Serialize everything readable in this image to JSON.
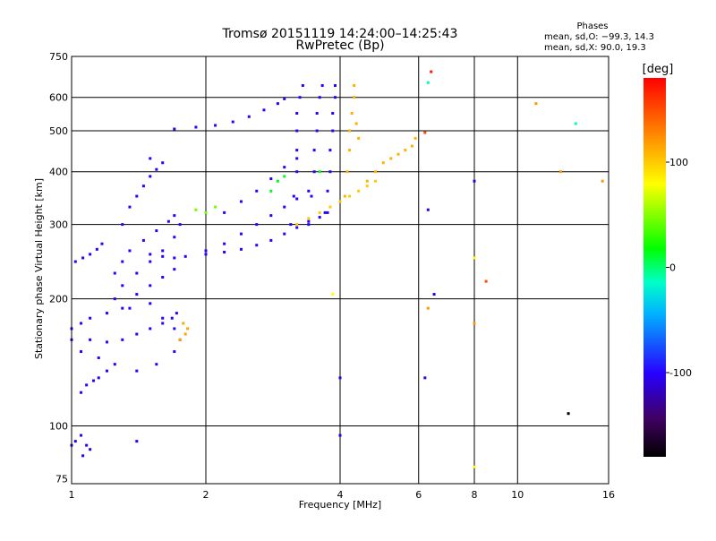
{
  "chart_data": {
    "type": "scatter",
    "title": "Tromsø 20151119 14:24:00–14:25:43",
    "subtitle": "RwPretec (Bp)",
    "stats": {
      "heading": "Phases",
      "line1": "mean, sd,O: −99.3, 14.3",
      "line2": "mean, sd,X:  90.0, 19.3"
    },
    "xlabel": "Frequency [MHz]",
    "ylabel": "Stationary phase Virtual Height [km]",
    "xscale": "log",
    "yscale": "log",
    "xlim": [
      1,
      16
    ],
    "ylim": [
      73,
      750
    ],
    "xticks": [
      1,
      2,
      4,
      6,
      8,
      10,
      16
    ],
    "yticks": [
      75,
      100,
      200,
      300,
      400,
      500,
      600,
      750
    ],
    "grid": true,
    "colorbar": {
      "label": "[deg]",
      "range": [
        -180,
        180
      ],
      "ticks": [
        100,
        0,
        -100
      ]
    },
    "series": [
      {
        "phase": -105,
        "points": [
          [
            1.0,
            90
          ],
          [
            1.02,
            92
          ],
          [
            1.05,
            95
          ],
          [
            1.06,
            85
          ],
          [
            1.08,
            90
          ],
          [
            1.4,
            92
          ],
          [
            1.1,
            88
          ]
        ]
      },
      {
        "phase": -100,
        "points": [
          [
            1.05,
            120
          ],
          [
            1.08,
            125
          ],
          [
            1.12,
            128
          ],
          [
            1.15,
            130
          ],
          [
            1.2,
            135
          ]
        ]
      },
      {
        "phase": -100,
        "points": [
          [
            1.0,
            170
          ],
          [
            1.05,
            175
          ],
          [
            1.1,
            180
          ],
          [
            1.2,
            185
          ],
          [
            1.35,
            190
          ],
          [
            1.5,
            195
          ],
          [
            1.6,
            180
          ],
          [
            1.7,
            170
          ],
          [
            1.75,
            160
          ],
          [
            1.7,
            150
          ],
          [
            1.55,
            140
          ],
          [
            1.4,
            135
          ],
          [
            1.25,
            140
          ],
          [
            1.15,
            145
          ],
          [
            1.05,
            150
          ],
          [
            1.0,
            160
          ]
        ]
      },
      {
        "phase": -100,
        "points": [
          [
            1.1,
            160
          ],
          [
            1.2,
            158
          ],
          [
            1.3,
            160
          ],
          [
            1.4,
            165
          ],
          [
            1.5,
            170
          ],
          [
            1.6,
            175
          ],
          [
            1.68,
            180
          ],
          [
            1.72,
            185
          ]
        ]
      },
      {
        "phase": -100,
        "points": [
          [
            1.02,
            245
          ],
          [
            1.06,
            250
          ],
          [
            1.1,
            255
          ],
          [
            1.14,
            262
          ],
          [
            1.17,
            270
          ]
        ]
      },
      {
        "phase": -100,
        "points": [
          [
            1.25,
            230
          ],
          [
            1.3,
            245
          ],
          [
            1.35,
            260
          ],
          [
            1.45,
            275
          ],
          [
            1.55,
            290
          ],
          [
            1.65,
            305
          ],
          [
            1.7,
            315
          ],
          [
            1.75,
            300
          ],
          [
            1.7,
            280
          ],
          [
            1.6,
            260
          ],
          [
            1.5,
            245
          ],
          [
            1.4,
            230
          ],
          [
            1.3,
            215
          ],
          [
            1.25,
            200
          ],
          [
            1.3,
            190
          ],
          [
            1.4,
            205
          ],
          [
            1.5,
            215
          ],
          [
            1.6,
            225
          ],
          [
            1.7,
            235
          ]
        ]
      },
      {
        "phase": -100,
        "points": [
          [
            1.3,
            300
          ],
          [
            1.35,
            330
          ],
          [
            1.4,
            350
          ],
          [
            1.45,
            370
          ],
          [
            1.5,
            390
          ],
          [
            1.55,
            405
          ],
          [
            1.6,
            420
          ],
          [
            1.5,
            430
          ]
        ]
      },
      {
        "phase": -100,
        "points": [
          [
            1.5,
            255
          ],
          [
            1.6,
            252
          ],
          [
            1.7,
            250
          ],
          [
            1.8,
            252
          ],
          [
            2.0,
            255
          ],
          [
            2.2,
            258
          ],
          [
            2.4,
            262
          ],
          [
            2.6,
            268
          ],
          [
            2.8,
            275
          ],
          [
            3.0,
            285
          ],
          [
            3.2,
            295
          ],
          [
            3.4,
            305
          ],
          [
            3.6,
            312
          ],
          [
            3.75,
            320
          ]
        ]
      },
      {
        "phase": -100,
        "points": [
          [
            2.0,
            260
          ],
          [
            2.2,
            270
          ],
          [
            2.4,
            285
          ],
          [
            2.6,
            300
          ],
          [
            2.8,
            315
          ],
          [
            3.0,
            330
          ],
          [
            3.2,
            345
          ],
          [
            3.4,
            360
          ]
        ]
      },
      {
        "phase": -100,
        "points": [
          [
            2.2,
            320
          ],
          [
            2.4,
            340
          ],
          [
            2.6,
            360
          ],
          [
            2.8,
            385
          ],
          [
            3.0,
            410
          ],
          [
            3.2,
            430
          ]
        ]
      },
      {
        "phase": -100,
        "points": [
          [
            1.7,
            505
          ],
          [
            1.9,
            510
          ],
          [
            2.1,
            515
          ],
          [
            2.3,
            525
          ],
          [
            2.5,
            540
          ],
          [
            2.7,
            560
          ],
          [
            2.9,
            580
          ],
          [
            3.0,
            595
          ]
        ]
      },
      {
        "phase": -100,
        "points": [
          [
            3.1,
            300
          ],
          [
            3.15,
            350
          ],
          [
            3.2,
            400
          ],
          [
            3.2,
            450
          ],
          [
            3.2,
            500
          ],
          [
            3.2,
            550
          ],
          [
            3.25,
            600
          ],
          [
            3.3,
            640
          ]
        ]
      },
      {
        "phase": -100,
        "points": [
          [
            3.4,
            300
          ],
          [
            3.45,
            350
          ],
          [
            3.5,
            400
          ],
          [
            3.5,
            450
          ],
          [
            3.55,
            500
          ],
          [
            3.55,
            550
          ],
          [
            3.6,
            600
          ],
          [
            3.65,
            640
          ]
        ]
      },
      {
        "phase": -100,
        "points": [
          [
            3.7,
            320
          ],
          [
            3.75,
            360
          ],
          [
            3.8,
            400
          ],
          [
            3.8,
            450
          ],
          [
            3.85,
            500
          ],
          [
            3.85,
            550
          ],
          [
            3.9,
            600
          ],
          [
            3.9,
            640
          ]
        ]
      },
      {
        "phase": 100,
        "points": [
          [
            3.2,
            300
          ],
          [
            3.4,
            310
          ],
          [
            3.6,
            320
          ],
          [
            3.8,
            330
          ],
          [
            4.0,
            340
          ],
          [
            4.2,
            350
          ],
          [
            4.4,
            360
          ],
          [
            4.6,
            370
          ],
          [
            4.8,
            380
          ]
        ]
      },
      {
        "phase": 110,
        "points": [
          [
            4.1,
            350
          ],
          [
            4.15,
            400
          ],
          [
            4.2,
            450
          ],
          [
            4.2,
            500
          ],
          [
            4.25,
            550
          ],
          [
            4.3,
            600
          ],
          [
            4.3,
            640
          ],
          [
            4.35,
            520
          ],
          [
            4.4,
            480
          ]
        ]
      },
      {
        "phase": 110,
        "points": [
          [
            4.6,
            380
          ],
          [
            4.8,
            400
          ],
          [
            5.0,
            420
          ],
          [
            5.2,
            430
          ],
          [
            5.4,
            440
          ],
          [
            5.6,
            450
          ],
          [
            5.8,
            460
          ],
          [
            5.9,
            480
          ]
        ]
      },
      {
        "phase": 115,
        "points": [
          [
            1.75,
            160
          ],
          [
            1.8,
            165
          ],
          [
            1.82,
            170
          ],
          [
            1.78,
            175
          ]
        ]
      },
      {
        "phase": 45,
        "points": [
          [
            2.0,
            320
          ],
          [
            2.1,
            330
          ],
          [
            1.9,
            325
          ]
        ]
      },
      {
        "phase": 15,
        "points": [
          [
            2.8,
            360
          ],
          [
            2.9,
            380
          ],
          [
            3.0,
            390
          ],
          [
            3.6,
            400
          ]
        ]
      },
      {
        "phase": 170,
        "points": [
          [
            6.4,
            690
          ]
        ]
      },
      {
        "phase": 150,
        "points": [
          [
            6.2,
            495
          ],
          [
            8.5,
            220
          ]
        ]
      },
      {
        "phase": 120,
        "points": [
          [
            11.0,
            580
          ],
          [
            15.5,
            380
          ],
          [
            12.5,
            400
          ],
          [
            6.3,
            190
          ],
          [
            8.0,
            175
          ]
        ]
      },
      {
        "phase": -10,
        "points": [
          [
            6.3,
            650
          ],
          [
            13.5,
            520
          ]
        ]
      },
      {
        "phase": -110,
        "points": [
          [
            6.5,
            205
          ],
          [
            6.3,
            325
          ],
          [
            8.0,
            380
          ],
          [
            4.0,
            95
          ],
          [
            6.2,
            130
          ],
          [
            4.0,
            130
          ]
        ]
      },
      {
        "phase": -180,
        "points": [
          [
            13.0,
            107
          ]
        ]
      },
      {
        "phase": 80,
        "points": [
          [
            8.0,
            80
          ],
          [
            8.0,
            250
          ],
          [
            3.85,
            205
          ]
        ]
      }
    ]
  }
}
